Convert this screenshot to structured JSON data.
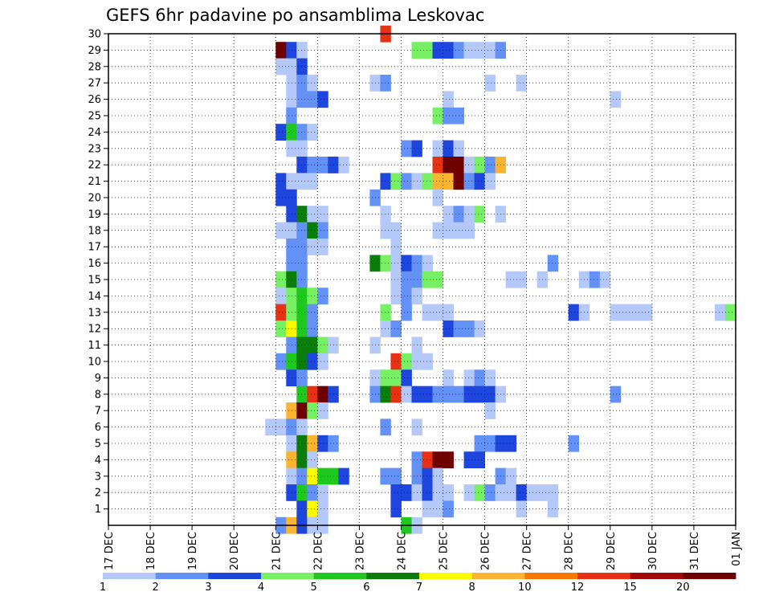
{
  "chart_data": {
    "type": "heatmap",
    "title": "GEFS 6hr padavine po ansamblima Leskovac",
    "xlabel": "",
    "ylabel": "",
    "x_ticks": [
      "17 DEC",
      "18 DEC",
      "19 DEC",
      "20 DEC",
      "21 DEC",
      "22 DEC",
      "23 DEC",
      "24 DEC",
      "25 DEC",
      "26 DEC",
      "27 DEC",
      "28 DEC",
      "29 DEC",
      "30 DEC",
      "31 DEC",
      "01 JAN"
    ],
    "y_ticks": [
      1,
      2,
      3,
      4,
      5,
      6,
      7,
      8,
      9,
      10,
      11,
      12,
      13,
      14,
      15,
      16,
      17,
      18,
      19,
      20,
      21,
      22,
      23,
      24,
      25,
      26,
      27,
      28,
      29,
      30
    ],
    "x_unit": "6h step (day index from 17 DEC)",
    "grid": true,
    "colorbar": {
      "labels": [
        "1",
        "2",
        "3",
        "4",
        "5",
        "6",
        "7",
        "8",
        "10",
        "12",
        "15",
        "20"
      ],
      "colors": [
        "#b4c8fa",
        "#6491f5",
        "#1e46dc",
        "#78f064",
        "#1ec81e",
        "#0a7d0a",
        "#fafa00",
        "#fab432",
        "#fa7800",
        "#e63214",
        "#a00a0a",
        "#6e0000"
      ]
    },
    "cells": [
      [
        4.0,
        29,
        12
      ],
      [
        4.25,
        29,
        3
      ],
      [
        4.5,
        29,
        1
      ],
      [
        4.25,
        28,
        1
      ],
      [
        4.5,
        28,
        3
      ],
      [
        4.0,
        28,
        1
      ],
      [
        4.25,
        27,
        1
      ],
      [
        4.5,
        27,
        2
      ],
      [
        4.75,
        27,
        1
      ],
      [
        4.25,
        26,
        1
      ],
      [
        4.5,
        26,
        2
      ],
      [
        4.75,
        26,
        2
      ],
      [
        5.0,
        26,
        3
      ],
      [
        4.25,
        25,
        2
      ],
      [
        4.0,
        24,
        3
      ],
      [
        4.25,
        24,
        5
      ],
      [
        4.5,
        24,
        2
      ],
      [
        4.75,
        24,
        1
      ],
      [
        4.25,
        23,
        1
      ],
      [
        4.5,
        23,
        1
      ],
      [
        4.5,
        22,
        3
      ],
      [
        4.75,
        22,
        2
      ],
      [
        5.0,
        22,
        2
      ],
      [
        5.25,
        22,
        3
      ],
      [
        5.5,
        22,
        1
      ],
      [
        4.0,
        21,
        3
      ],
      [
        4.25,
        21,
        1
      ],
      [
        4.5,
        21,
        1
      ],
      [
        4.75,
        21,
        1
      ],
      [
        4.0,
        20,
        3
      ],
      [
        4.25,
        20,
        3
      ],
      [
        4.25,
        19,
        3
      ],
      [
        4.5,
        19,
        6
      ],
      [
        4.75,
        19,
        1
      ],
      [
        5.0,
        19,
        1
      ],
      [
        4.0,
        18,
        1
      ],
      [
        4.25,
        18,
        1
      ],
      [
        4.5,
        18,
        2
      ],
      [
        4.75,
        18,
        6
      ],
      [
        5.0,
        18,
        2
      ],
      [
        4.25,
        17,
        2
      ],
      [
        4.5,
        17,
        2
      ],
      [
        4.75,
        17,
        1
      ],
      [
        5.0,
        17,
        1
      ],
      [
        4.25,
        16,
        2
      ],
      [
        4.5,
        16,
        2
      ],
      [
        4.0,
        15,
        4
      ],
      [
        4.25,
        15,
        6
      ],
      [
        4.5,
        15,
        2
      ],
      [
        4.0,
        14,
        1
      ],
      [
        4.25,
        14,
        4
      ],
      [
        4.5,
        14,
        5
      ],
      [
        4.75,
        14,
        4
      ],
      [
        5.0,
        14,
        2
      ],
      [
        4.0,
        13,
        10
      ],
      [
        4.25,
        13,
        4
      ],
      [
        4.5,
        13,
        5
      ],
      [
        4.75,
        13,
        2
      ],
      [
        4.0,
        12,
        4
      ],
      [
        4.25,
        12,
        7
      ],
      [
        4.5,
        12,
        5
      ],
      [
        4.75,
        12,
        2
      ],
      [
        4.25,
        11,
        2
      ],
      [
        4.5,
        11,
        6
      ],
      [
        4.75,
        11,
        6
      ],
      [
        5.0,
        11,
        4
      ],
      [
        5.25,
        11,
        1
      ],
      [
        4.0,
        10,
        2
      ],
      [
        4.25,
        10,
        5
      ],
      [
        4.5,
        10,
        6
      ],
      [
        4.75,
        10,
        3
      ],
      [
        5.0,
        10,
        1
      ],
      [
        4.25,
        9,
        3
      ],
      [
        4.5,
        9,
        2
      ],
      [
        4.5,
        8,
        5
      ],
      [
        4.75,
        8,
        10
      ],
      [
        5.0,
        8,
        12
      ],
      [
        5.25,
        8,
        3
      ],
      [
        4.25,
        7,
        8
      ],
      [
        4.5,
        7,
        15
      ],
      [
        4.75,
        7,
        4
      ],
      [
        5.0,
        7,
        1
      ],
      [
        3.75,
        6,
        1
      ],
      [
        4.0,
        6,
        1
      ],
      [
        4.25,
        6,
        2
      ],
      [
        4.5,
        6,
        1
      ],
      [
        4.25,
        5,
        1
      ],
      [
        4.5,
        5,
        6
      ],
      [
        4.75,
        5,
        8
      ],
      [
        5.0,
        5,
        3
      ],
      [
        5.25,
        5,
        2
      ],
      [
        4.25,
        4,
        8
      ],
      [
        4.5,
        4,
        6
      ],
      [
        4.75,
        4,
        1
      ],
      [
        4.25,
        3,
        1
      ],
      [
        4.5,
        3,
        2
      ],
      [
        4.75,
        3,
        7
      ],
      [
        5.0,
        3,
        5
      ],
      [
        5.25,
        3,
        5
      ],
      [
        5.5,
        3,
        3
      ],
      [
        4.25,
        2,
        3
      ],
      [
        4.5,
        2,
        5
      ],
      [
        4.75,
        2,
        2
      ],
      [
        5.0,
        2,
        1
      ],
      [
        4.5,
        1,
        3
      ],
      [
        4.75,
        1,
        7
      ],
      [
        5.0,
        1,
        1
      ],
      [
        4.0,
        0,
        2
      ],
      [
        4.25,
        0,
        8
      ],
      [
        4.5,
        0,
        3
      ],
      [
        4.75,
        0,
        1
      ],
      [
        5.0,
        0,
        1
      ],
      [
        6.5,
        30,
        10
      ],
      [
        7.25,
        29,
        4
      ],
      [
        7.5,
        29,
        4
      ],
      [
        7.75,
        29,
        3
      ],
      [
        8.0,
        29,
        3
      ],
      [
        8.25,
        29,
        2
      ],
      [
        8.5,
        29,
        1
      ],
      [
        8.75,
        29,
        1
      ],
      [
        9.0,
        29,
        1
      ],
      [
        9.25,
        29,
        2
      ],
      [
        6.25,
        27,
        1
      ],
      [
        6.5,
        27,
        2
      ],
      [
        9.0,
        27,
        1
      ],
      [
        9.75,
        27,
        1
      ],
      [
        8.0,
        26,
        1
      ],
      [
        12.0,
        26,
        1
      ],
      [
        7.75,
        25,
        4
      ],
      [
        8.0,
        25,
        2
      ],
      [
        8.25,
        25,
        2
      ],
      [
        7.0,
        23,
        2
      ],
      [
        7.25,
        23,
        3
      ],
      [
        7.75,
        23,
        1
      ],
      [
        8.0,
        23,
        3
      ],
      [
        8.25,
        23,
        1
      ],
      [
        7.75,
        22,
        10
      ],
      [
        8.0,
        22,
        20
      ],
      [
        8.25,
        22,
        15
      ],
      [
        8.5,
        22,
        1
      ],
      [
        8.75,
        22,
        4
      ],
      [
        9.0,
        22,
        2
      ],
      [
        9.25,
        22,
        8
      ],
      [
        6.5,
        21,
        3
      ],
      [
        6.75,
        21,
        4
      ],
      [
        7.0,
        21,
        2
      ],
      [
        7.25,
        21,
        1
      ],
      [
        7.5,
        21,
        4
      ],
      [
        7.75,
        21,
        8
      ],
      [
        8.0,
        21,
        8
      ],
      [
        8.25,
        21,
        15
      ],
      [
        8.5,
        21,
        2
      ],
      [
        8.75,
        21,
        3
      ],
      [
        9.0,
        21,
        1
      ],
      [
        6.25,
        20,
        2
      ],
      [
        7.75,
        20,
        1
      ],
      [
        6.5,
        19,
        1
      ],
      [
        8.0,
        19,
        1
      ],
      [
        8.25,
        19,
        2
      ],
      [
        8.5,
        19,
        1
      ],
      [
        8.75,
        19,
        4
      ],
      [
        9.25,
        19,
        1
      ],
      [
        6.5,
        18,
        1
      ],
      [
        6.75,
        18,
        1
      ],
      [
        7.75,
        18,
        1
      ],
      [
        8.0,
        18,
        1
      ],
      [
        8.25,
        18,
        1
      ],
      [
        8.5,
        18,
        1
      ],
      [
        6.75,
        17,
        1
      ],
      [
        6.25,
        16,
        6
      ],
      [
        6.5,
        16,
        4
      ],
      [
        6.75,
        16,
        1
      ],
      [
        7.0,
        16,
        3
      ],
      [
        7.25,
        16,
        2
      ],
      [
        7.5,
        16,
        1
      ],
      [
        10.5,
        16,
        2
      ],
      [
        6.75,
        15,
        1
      ],
      [
        7.0,
        15,
        2
      ],
      [
        7.25,
        15,
        2
      ],
      [
        7.5,
        15,
        4
      ],
      [
        7.75,
        15,
        4
      ],
      [
        9.5,
        15,
        1
      ],
      [
        9.75,
        15,
        1
      ],
      [
        10.25,
        15,
        1
      ],
      [
        11.25,
        15,
        1
      ],
      [
        11.5,
        15,
        2
      ],
      [
        11.75,
        15,
        1
      ],
      [
        6.75,
        14,
        1
      ],
      [
        7.0,
        14,
        2
      ],
      [
        7.25,
        14,
        1
      ],
      [
        6.5,
        13,
        4
      ],
      [
        7.0,
        13,
        2
      ],
      [
        7.5,
        13,
        1
      ],
      [
        7.75,
        13,
        1
      ],
      [
        8.0,
        13,
        1
      ],
      [
        11.0,
        13,
        3
      ],
      [
        11.25,
        13,
        1
      ],
      [
        12.0,
        13,
        1
      ],
      [
        12.25,
        13,
        1
      ],
      [
        12.5,
        13,
        1
      ],
      [
        12.75,
        13,
        1
      ],
      [
        14.5,
        13,
        1
      ],
      [
        14.75,
        13,
        4
      ],
      [
        6.5,
        12,
        1
      ],
      [
        6.75,
        12,
        2
      ],
      [
        8.0,
        12,
        3
      ],
      [
        8.25,
        12,
        2
      ],
      [
        8.5,
        12,
        2
      ],
      [
        8.75,
        12,
        1
      ],
      [
        6.25,
        11,
        1
      ],
      [
        7.25,
        11,
        1
      ],
      [
        6.75,
        10,
        10
      ],
      [
        7.0,
        10,
        4
      ],
      [
        7.25,
        10,
        1
      ],
      [
        7.5,
        10,
        1
      ],
      [
        6.25,
        9,
        1
      ],
      [
        6.5,
        9,
        4
      ],
      [
        6.75,
        9,
        4
      ],
      [
        7.0,
        9,
        3
      ],
      [
        8.0,
        9,
        1
      ],
      [
        8.5,
        9,
        1
      ],
      [
        8.75,
        9,
        2
      ],
      [
        9.0,
        9,
        1
      ],
      [
        6.25,
        8,
        2
      ],
      [
        6.5,
        8,
        6
      ],
      [
        6.75,
        8,
        10
      ],
      [
        7.0,
        8,
        1
      ],
      [
        7.25,
        8,
        3
      ],
      [
        7.5,
        8,
        3
      ],
      [
        7.75,
        8,
        2
      ],
      [
        8.0,
        8,
        2
      ],
      [
        8.25,
        8,
        2
      ],
      [
        8.5,
        8,
        3
      ],
      [
        8.75,
        8,
        3
      ],
      [
        9.0,
        8,
        3
      ],
      [
        9.25,
        8,
        1
      ],
      [
        12.0,
        8,
        2
      ],
      [
        9.0,
        7,
        1
      ],
      [
        6.5,
        6,
        2
      ],
      [
        7.25,
        6,
        1
      ],
      [
        8.75,
        5,
        2
      ],
      [
        9.0,
        5,
        2
      ],
      [
        9.25,
        5,
        3
      ],
      [
        9.5,
        5,
        3
      ],
      [
        11.0,
        5,
        2
      ],
      [
        7.25,
        4,
        2
      ],
      [
        7.5,
        4,
        10
      ],
      [
        7.75,
        4,
        15
      ],
      [
        8.0,
        4,
        12
      ],
      [
        8.5,
        4,
        3
      ],
      [
        8.75,
        4,
        3
      ],
      [
        6.5,
        3,
        2
      ],
      [
        6.75,
        3,
        2
      ],
      [
        7.25,
        3,
        2
      ],
      [
        7.5,
        3,
        3
      ],
      [
        7.75,
        3,
        1
      ],
      [
        9.25,
        3,
        2
      ],
      [
        9.5,
        3,
        1
      ],
      [
        6.75,
        2,
        3
      ],
      [
        7.0,
        2,
        3
      ],
      [
        7.25,
        2,
        1
      ],
      [
        7.5,
        2,
        3
      ],
      [
        7.75,
        2,
        1
      ],
      [
        8.0,
        2,
        1
      ],
      [
        8.5,
        2,
        1
      ],
      [
        8.75,
        2,
        4
      ],
      [
        9.0,
        2,
        2
      ],
      [
        9.25,
        2,
        1
      ],
      [
        9.5,
        2,
        1
      ],
      [
        9.75,
        2,
        3
      ],
      [
        10.0,
        2,
        1
      ],
      [
        10.25,
        2,
        1
      ],
      [
        10.5,
        2,
        1
      ],
      [
        6.75,
        1,
        3
      ],
      [
        7.5,
        1,
        1
      ],
      [
        7.75,
        1,
        1
      ],
      [
        8.0,
        1,
        2
      ],
      [
        9.75,
        1,
        1
      ],
      [
        10.5,
        1,
        1
      ],
      [
        7.0,
        0,
        5
      ],
      [
        7.25,
        0,
        1
      ]
    ]
  }
}
